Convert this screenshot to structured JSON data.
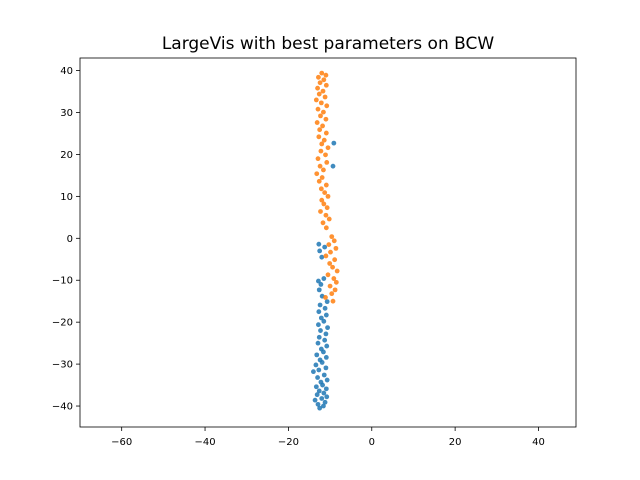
{
  "chart_data": {
    "type": "scatter",
    "title": "LargeVis with best parameters on BCW",
    "xlabel": "",
    "ylabel": "",
    "xlim": [
      -70,
      49
    ],
    "ylim": [
      -45,
      43
    ],
    "xticks": [
      -60,
      -40,
      -20,
      0,
      20,
      40
    ],
    "yticks": [
      -40,
      -30,
      -20,
      -10,
      0,
      10,
      20,
      30,
      40
    ],
    "xtick_labels": [
      "−60",
      "−40",
      "−20",
      "0",
      "20",
      "40"
    ],
    "ytick_labels": [
      "−40",
      "−30",
      "−20",
      "−10",
      "0",
      "10",
      "20",
      "30",
      "40"
    ],
    "grid": false,
    "legend": "none",
    "series": [
      {
        "color": "#1f77b4",
        "points": [
          [
            -12.5,
            -40.5
          ],
          [
            -11.6,
            -40.0
          ],
          [
            -12.9,
            -39.6
          ],
          [
            -11.2,
            -39.1
          ],
          [
            -13.6,
            -38.6
          ],
          [
            -12.0,
            -38.2
          ],
          [
            -10.8,
            -37.8
          ],
          [
            -13.1,
            -37.3
          ],
          [
            -11.5,
            -36.9
          ],
          [
            -12.6,
            -36.4
          ],
          [
            -10.9,
            -35.9
          ],
          [
            -13.3,
            -35.4
          ],
          [
            -11.8,
            -35.0
          ],
          [
            -12.2,
            -34.3
          ],
          [
            -10.7,
            -33.8
          ],
          [
            -13.0,
            -33.2
          ],
          [
            -11.4,
            -32.6
          ],
          [
            -14.0,
            -31.8
          ],
          [
            -12.7,
            -31.4
          ],
          [
            -11.0,
            -30.9
          ],
          [
            -13.4,
            -30.2
          ],
          [
            -11.9,
            -29.6
          ],
          [
            -12.4,
            -29.0
          ],
          [
            -10.9,
            -28.4
          ],
          [
            -13.2,
            -27.8
          ],
          [
            -11.6,
            -27.1
          ],
          [
            -12.1,
            -26.4
          ],
          [
            -10.8,
            -25.7
          ],
          [
            -12.9,
            -25.0
          ],
          [
            -11.3,
            -24.3
          ],
          [
            -12.6,
            -23.6
          ],
          [
            -11.0,
            -22.8
          ],
          [
            -12.3,
            -22.0
          ],
          [
            -10.6,
            -21.3
          ],
          [
            -12.8,
            -20.6
          ],
          [
            -11.5,
            -19.8
          ],
          [
            -12.1,
            -19.0
          ],
          [
            -10.9,
            -18.3
          ],
          [
            -12.7,
            -17.5
          ],
          [
            -11.2,
            -16.7
          ],
          [
            -12.4,
            -15.9
          ],
          [
            -10.7,
            -15.1
          ],
          [
            -11.9,
            -13.8
          ],
          [
            -12.6,
            -12.3
          ],
          [
            -12.2,
            -11.0
          ],
          [
            -12.8,
            -10.2
          ],
          [
            -11.5,
            -9.6
          ],
          [
            -12.0,
            -4.5
          ],
          [
            -12.5,
            -3.0
          ],
          [
            -11.3,
            -2.1
          ],
          [
            -12.7,
            -1.4
          ],
          [
            -9.3,
            17.2
          ],
          [
            -9.1,
            22.7
          ]
        ]
      },
      {
        "color": "#ff7f0e",
        "points": [
          [
            -12.0,
            39.4
          ],
          [
            -11.0,
            38.9
          ],
          [
            -12.8,
            38.4
          ],
          [
            -11.5,
            37.8
          ],
          [
            -12.4,
            37.1
          ],
          [
            -10.9,
            36.5
          ],
          [
            -13.0,
            35.8
          ],
          [
            -11.7,
            35.1
          ],
          [
            -12.6,
            34.4
          ],
          [
            -11.2,
            33.7
          ],
          [
            -13.3,
            33.0
          ],
          [
            -12.1,
            32.3
          ],
          [
            -10.8,
            31.6
          ],
          [
            -12.9,
            30.8
          ],
          [
            -11.6,
            30.1
          ],
          [
            -12.3,
            29.2
          ],
          [
            -11.0,
            28.4
          ],
          [
            -13.1,
            27.6
          ],
          [
            -11.8,
            26.8
          ],
          [
            -12.5,
            25.9
          ],
          [
            -10.9,
            25.1
          ],
          [
            -12.7,
            24.2
          ],
          [
            -11.4,
            23.4
          ],
          [
            -12.0,
            22.5
          ],
          [
            -10.5,
            21.6
          ],
          [
            -12.2,
            20.8
          ],
          [
            -11.1,
            19.9
          ],
          [
            -12.9,
            19.0
          ],
          [
            -10.8,
            18.1
          ],
          [
            -12.4,
            17.2
          ],
          [
            -11.6,
            16.3
          ],
          [
            -13.2,
            15.4
          ],
          [
            -11.9,
            14.5
          ],
          [
            -12.6,
            13.6
          ],
          [
            -10.9,
            12.7
          ],
          [
            -12.1,
            11.8
          ],
          [
            -11.3,
            10.9
          ],
          [
            -10.5,
            10.0
          ],
          [
            -12.0,
            9.1
          ],
          [
            -11.5,
            8.2
          ],
          [
            -10.7,
            7.3
          ],
          [
            -12.3,
            6.4
          ],
          [
            -11.0,
            5.5
          ],
          [
            -10.2,
            4.6
          ],
          [
            -11.7,
            3.7
          ],
          [
            -10.9,
            2.5
          ],
          [
            -9.6,
            0.4
          ],
          [
            -9.0,
            -0.6
          ],
          [
            -10.3,
            -1.5
          ],
          [
            -8.6,
            -2.4
          ],
          [
            -9.9,
            -3.3
          ],
          [
            -11.0,
            -4.2
          ],
          [
            -8.9,
            -5.1
          ],
          [
            -10.1,
            -6.0
          ],
          [
            -9.4,
            -6.9
          ],
          [
            -8.3,
            -7.8
          ],
          [
            -10.5,
            -8.7
          ],
          [
            -9.1,
            -9.6
          ],
          [
            -8.5,
            -10.5
          ],
          [
            -10.0,
            -11.4
          ],
          [
            -8.8,
            -12.3
          ],
          [
            -9.6,
            -13.2
          ],
          [
            -11.1,
            -14.1
          ],
          [
            -9.3,
            -15.0
          ]
        ]
      }
    ]
  }
}
